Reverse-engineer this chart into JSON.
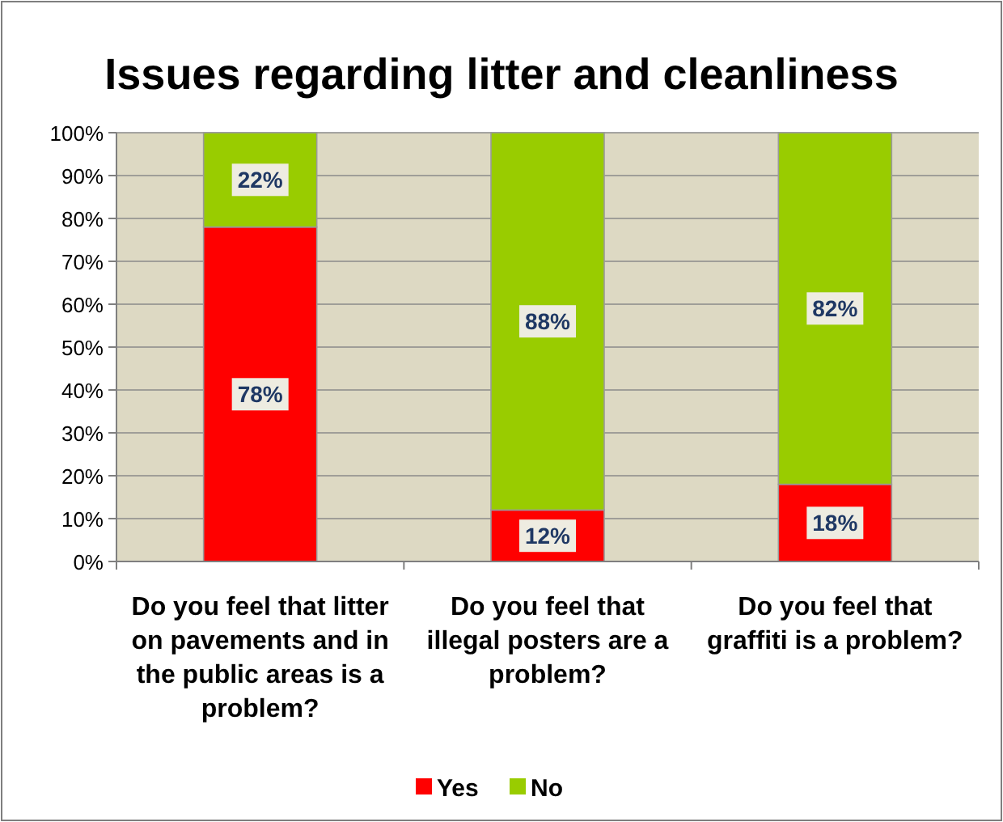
{
  "chart_data": {
    "type": "bar",
    "title": "Issues regarding litter and cleanliness",
    "categories": [
      "Do you feel that litter on pavements and in the public areas is a problem?",
      "Do you feel that illegal posters are a problem?",
      "Do you feel that graffiti is a problem?"
    ],
    "stacked": true,
    "series": [
      {
        "name": "Yes",
        "color": "#ff0000",
        "values": [
          78,
          12,
          18
        ],
        "value_labels": [
          "78%",
          "12%",
          "18%"
        ]
      },
      {
        "name": "No",
        "color": "#99cc00",
        "values": [
          22,
          88,
          82
        ],
        "value_labels": [
          "22%",
          "88%",
          "82%"
        ]
      }
    ],
    "ylim": [
      0,
      100
    ],
    "yticks": [
      {
        "value": 0,
        "label": "0%"
      },
      {
        "value": 10,
        "label": "10%"
      },
      {
        "value": 20,
        "label": "20%"
      },
      {
        "value": 30,
        "label": "30%"
      },
      {
        "value": 40,
        "label": "40%"
      },
      {
        "value": 50,
        "label": "50%"
      },
      {
        "value": 60,
        "label": "60%"
      },
      {
        "value": 70,
        "label": "70%"
      },
      {
        "value": 80,
        "label": "80%"
      },
      {
        "value": 90,
        "label": "90%"
      },
      {
        "value": 100,
        "label": "100%"
      }
    ],
    "grid": "y",
    "legend": "bottom"
  }
}
